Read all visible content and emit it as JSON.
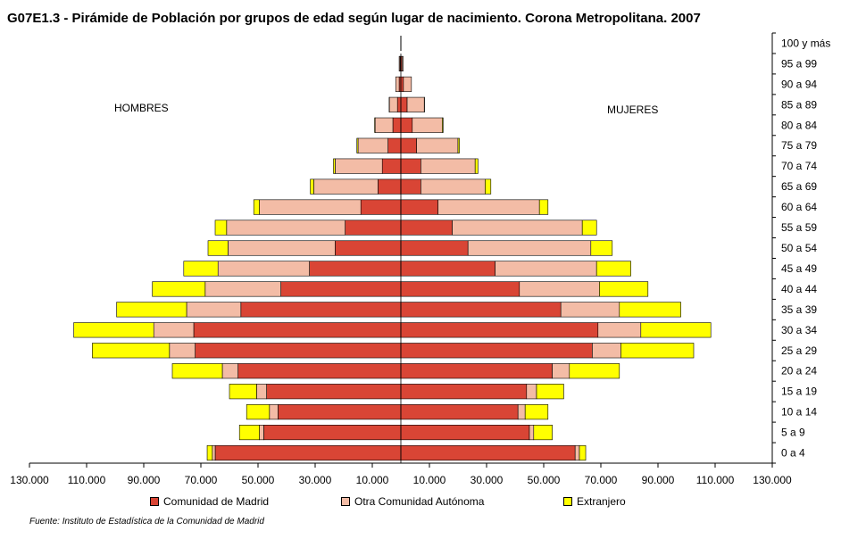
{
  "chart_data": {
    "type": "bar",
    "title": "G07E1.3 - Pirámide de Población por grupos de edad según lugar de nacimiento. Corona Metropolitana. 2007",
    "categories": [
      "0 a 4",
      "5 a 9",
      "10 a 14",
      "15 a 19",
      "20 a 24",
      "25 a 29",
      "30 a 34",
      "35 a 39",
      "40 a 44",
      "45 a 49",
      "50 a 54",
      "55 a 59",
      "60 a 64",
      "65 a 69",
      "70 a 74",
      "75 a 79",
      "80 a 84",
      "85 a 89",
      "90 a 94",
      "95 a 99",
      "100 y más"
    ],
    "hombres_label": "HOMBRES",
    "mujeres_label": "MUJERES",
    "xlim": [
      -130000,
      130000
    ],
    "xticks": [
      "130.000",
      "110.000",
      "90.000",
      "70.000",
      "50.000",
      "30.000",
      "10.000",
      "10.000",
      "30.000",
      "50.000",
      "70.000",
      "90.000",
      "110.000",
      "130.000"
    ],
    "series": [
      {
        "name": "Comunidad de Madrid",
        "color": "#d94535",
        "hombres": [
          65000,
          48000,
          43000,
          47000,
          57000,
          72000,
          72500,
          56000,
          42000,
          32000,
          23000,
          19500,
          14000,
          8000,
          6500,
          4500,
          2800,
          1200,
          600,
          300,
          0
        ],
        "mujeres": [
          61000,
          45000,
          41000,
          44000,
          53000,
          67000,
          69000,
          56000,
          41500,
          33000,
          23500,
          18000,
          13000,
          7000,
          7000,
          5500,
          4000,
          2200,
          900,
          400,
          0
        ]
      },
      {
        "name": "Otra Comunidad Autónoma",
        "color": "#f3bca6",
        "hombres": [
          1000,
          1500,
          3000,
          3500,
          5500,
          9000,
          14000,
          19000,
          26500,
          32000,
          37500,
          41500,
          35500,
          22500,
          16500,
          10500,
          6200,
          2800,
          1200,
          300,
          0
        ],
        "mujeres": [
          1500,
          1500,
          2500,
          3500,
          6000,
          10000,
          15000,
          20500,
          28000,
          35500,
          43000,
          45500,
          35500,
          22500,
          19000,
          14500,
          10500,
          6000,
          2800,
          400,
          0
        ]
      },
      {
        "name": "Extranjero",
        "color": "#ffff00",
        "hombres": [
          1800,
          7000,
          8000,
          9500,
          17500,
          27000,
          28000,
          24500,
          18500,
          12000,
          7000,
          4000,
          2000,
          1200,
          600,
          400,
          200,
          100,
          0,
          0,
          0
        ],
        "mujeres": [
          2200,
          6500,
          8000,
          9500,
          17500,
          25500,
          24500,
          21500,
          17000,
          12000,
          7500,
          5000,
          3000,
          2000,
          1000,
          500,
          300,
          100,
          0,
          0,
          0
        ]
      }
    ],
    "grid": false,
    "legend_position": "bottom"
  },
  "source": "Fuente: Instituto de Estadística de la Comunidad de Madrid"
}
